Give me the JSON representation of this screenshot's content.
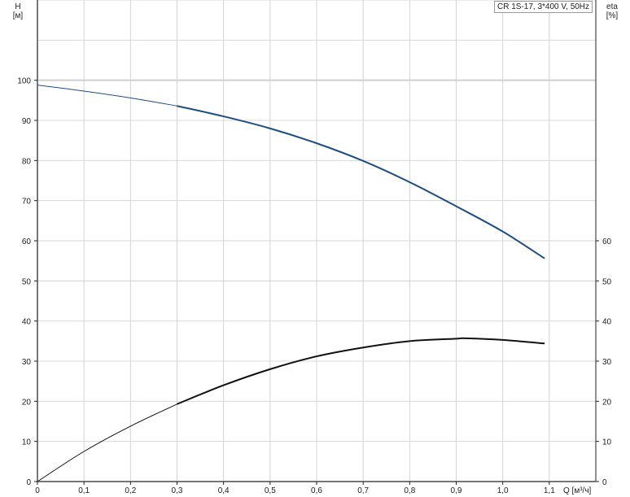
{
  "chart_data": {
    "type": "line",
    "title": "CR 1S-17, 3*400 V, 50Hz",
    "xlabel": "Q [м³/ч]",
    "ylabel_left": "H",
    "ylabel_left_unit": "[м]",
    "ylabel_right": "eta",
    "ylabel_right_unit": "[%]",
    "xlim": [
      0,
      1.2
    ],
    "ylim": [
      0,
      120
    ],
    "x_ticks": [
      "0",
      "0,1",
      "0,2",
      "0,3",
      "0,4",
      "0,5",
      "0,6",
      "0,7",
      "0,8",
      "0,9",
      "1,0",
      "1,1"
    ],
    "y_left_ticks": [
      "0",
      "10",
      "20",
      "30",
      "40",
      "50",
      "60",
      "70",
      "80",
      "90",
      "100"
    ],
    "y_right_ticks": [
      "0",
      "10",
      "20",
      "30",
      "40",
      "50",
      "60"
    ],
    "grid": true,
    "duty_range_start": 0.3,
    "series": [
      {
        "id": "head",
        "color": "#1f4e85",
        "x": [
          0,
          0.1,
          0.2,
          0.3,
          0.4,
          0.5,
          0.6,
          0.7,
          0.8,
          0.9,
          1.0,
          1.09
        ],
        "y": [
          98.8,
          97.3,
          95.6,
          93.6,
          91.0,
          88.0,
          84.3,
          79.9,
          74.6,
          68.6,
          62.3,
          55.6
        ]
      },
      {
        "id": "efficiency",
        "color": "#111111",
        "x": [
          0,
          0.1,
          0.2,
          0.3,
          0.4,
          0.5,
          0.6,
          0.7,
          0.8,
          0.9,
          0.92,
          1.0,
          1.09
        ],
        "y": [
          0,
          7.5,
          13.8,
          19.3,
          24.0,
          28.0,
          31.2,
          33.4,
          35.0,
          35.6,
          35.7,
          35.3,
          34.4
        ]
      }
    ]
  }
}
